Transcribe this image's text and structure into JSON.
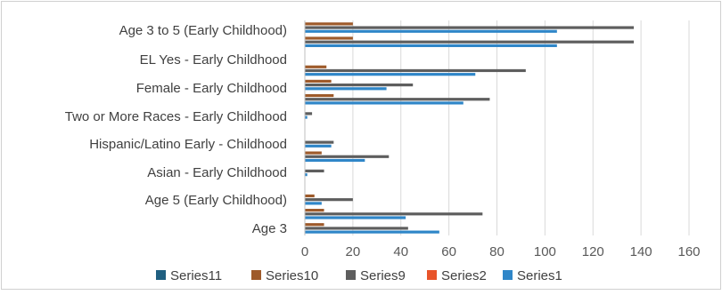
{
  "chart_data": {
    "type": "bar",
    "orientation": "horizontal",
    "title": "",
    "xlabel": "",
    "ylabel": "",
    "xlim": [
      0,
      160
    ],
    "x_ticks": [
      0,
      20,
      40,
      60,
      80,
      100,
      120,
      140,
      160
    ],
    "grid": "vertical",
    "legend_position": "bottom",
    "category_labels": [
      "Age 3 to 5 (Early Childhood)",
      "EL Yes - Early Childhood",
      "Female - Early Childhood",
      "Two or More Races - Early Childhood",
      "Hispanic/Latino Early - Childhood",
      "Asian - Early Childhood",
      "Age 5 (Early Childhood)",
      "Age 3"
    ],
    "series": [
      {
        "name": "Series11",
        "color": "#1f5f80"
      },
      {
        "name": "Series10",
        "color": "#9e5a2a"
      },
      {
        "name": "Series9",
        "color": "#5e5e5e"
      },
      {
        "name": "Series2",
        "color": "#e8542a"
      },
      {
        "name": "Series1",
        "color": "#2f86c8"
      }
    ],
    "groups": [
      {
        "Series10": 20,
        "Series9": 137,
        "Series1": 105
      },
      {
        "Series10": 20,
        "Series9": 137,
        "Series1": 105
      },
      {
        "Series10": 0,
        "Series9": 0,
        "Series1": 0
      },
      {
        "Series10": 9,
        "Series9": 92,
        "Series1": 71
      },
      {
        "Series10": 11,
        "Series9": 45,
        "Series1": 34
      },
      {
        "Series10": 12,
        "Series9": 77,
        "Series1": 66
      },
      {
        "Series10": 0,
        "Series9": 3,
        "Series1": 1
      },
      {
        "Series10": 0,
        "Series9": 0,
        "Series1": 0
      },
      {
        "Series10": 0,
        "Series9": 12,
        "Series1": 11
      },
      {
        "Series10": 7,
        "Series9": 35,
        "Series1": 25
      },
      {
        "Series10": 0,
        "Series9": 8,
        "Series1": 1
      },
      {
        "Series10": 0,
        "Series9": 0,
        "Series1": 0
      },
      {
        "Series10": 4,
        "Series9": 20,
        "Series1": 7
      },
      {
        "Series10": 8,
        "Series9": 74,
        "Series1": 42
      },
      {
        "Series10": 8,
        "Series9": 43,
        "Series1": 56
      }
    ]
  }
}
